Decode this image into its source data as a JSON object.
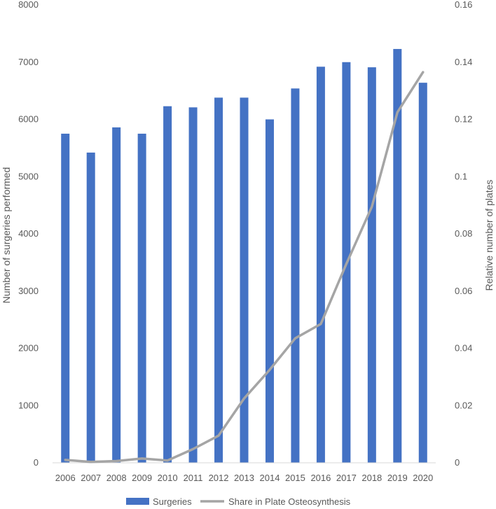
{
  "chart_data": {
    "type": "bar",
    "categories": [
      "2006",
      "2007",
      "2008",
      "2009",
      "2010",
      "2011",
      "2012",
      "2013",
      "2014",
      "2015",
      "2016",
      "2017",
      "2018",
      "2019",
      "2020"
    ],
    "series": [
      {
        "name": "Surgeries",
        "type": "bar",
        "axis": "left",
        "color": "#4472C4",
        "values": [
          5750,
          5420,
          5860,
          5750,
          6230,
          6210,
          6380,
          6380,
          6000,
          6540,
          6920,
          7000,
          6910,
          7230,
          6640
        ]
      },
      {
        "name": "Share in Plate Osteosynthesis",
        "type": "line",
        "axis": "right",
        "color": "#A5A5A5",
        "values": [
          0.001,
          0.0003,
          0.0006,
          0.0015,
          0.0008,
          0.0048,
          0.0095,
          0.0225,
          0.0325,
          0.0435,
          0.0485,
          0.0695,
          0.0895,
          0.1225,
          0.1365
        ]
      }
    ],
    "xlabel": "",
    "ylabel": "Number of surgeries performed",
    "y2label": "Relative number of plates",
    "ylim": [
      0,
      8000
    ],
    "y2lim": [
      0,
      0.16
    ],
    "yticks": [
      "0",
      "1000",
      "2000",
      "3000",
      "4000",
      "5000",
      "6000",
      "7000",
      "8000"
    ],
    "y2ticks": [
      "0",
      "0.02",
      "0.04",
      "0.06",
      "0.08",
      "0.1",
      "0.12",
      "0.14",
      "0.16"
    ],
    "grid": false,
    "legend": "bottom"
  }
}
